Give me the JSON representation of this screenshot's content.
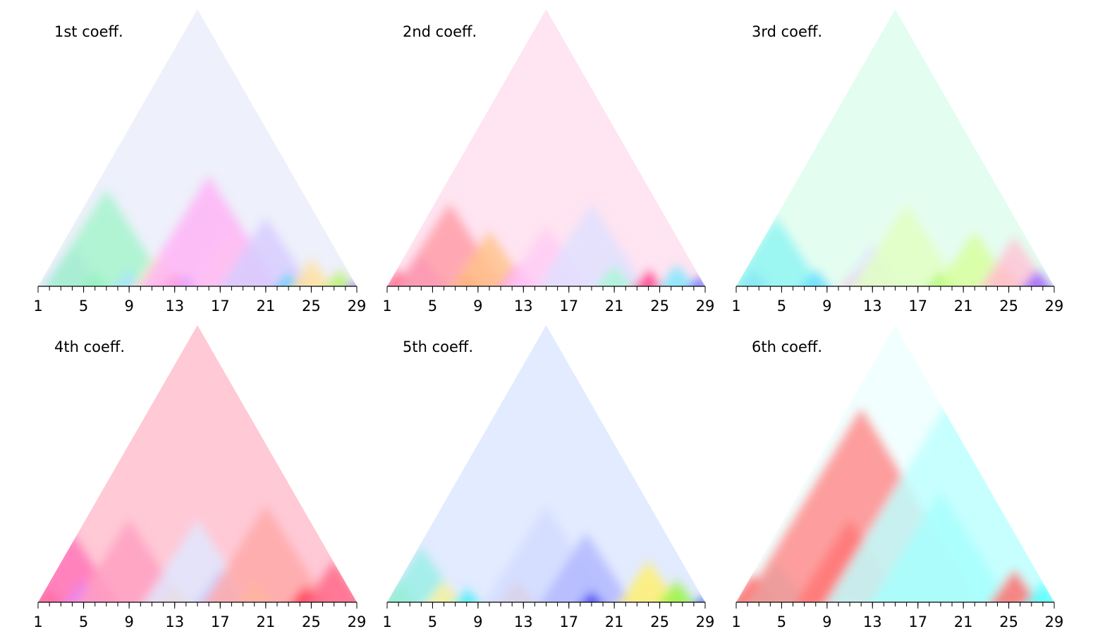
{
  "chart_data": [
    {
      "type": "heatmap",
      "title": "1st coeff.",
      "x_range": [
        1,
        29
      ],
      "minor_ticks": [
        1,
        2,
        3,
        4,
        5,
        6,
        7,
        8,
        9,
        10,
        11,
        12,
        13,
        14,
        15,
        16,
        17,
        18,
        19,
        20,
        21,
        22,
        23,
        24,
        25,
        26,
        27,
        28,
        29
      ],
      "tick_labels": [
        "1",
        "5",
        "9",
        "13",
        "17",
        "21",
        "25",
        "29"
      ],
      "tick_values": [
        1,
        5,
        9,
        13,
        17,
        21,
        25,
        29
      ],
      "colors": {
        "apex": "#eef0fb",
        "blobs": [
          {
            "x": 4,
            "level": 0.15,
            "color": "#b8c8ff"
          },
          {
            "x": 6,
            "level": 0.05,
            "color": "#2ee86a"
          },
          {
            "x": 7,
            "level": 0.35,
            "color": "#a6f5cc"
          },
          {
            "x": 9,
            "level": 0.06,
            "color": "#a6e4ff"
          },
          {
            "x": 11.5,
            "level": 0.12,
            "color": "#fff2b0"
          },
          {
            "x": 13,
            "level": 0.05,
            "color": "#ff2266"
          },
          {
            "x": 14,
            "level": 0.04,
            "color": "#3344ff"
          },
          {
            "x": 16,
            "level": 0.4,
            "color": "#ffb4f7"
          },
          {
            "x": 18,
            "level": 0.2,
            "color": "#ffc2f2"
          },
          {
            "x": 21,
            "level": 0.25,
            "color": "#d7ccff"
          },
          {
            "x": 23,
            "level": 0.05,
            "color": "#3fd0ff"
          },
          {
            "x": 25,
            "level": 0.1,
            "color": "#ffe2a0"
          },
          {
            "x": 27.5,
            "level": 0.06,
            "color": "#b7f26d"
          },
          {
            "x": 28.8,
            "level": 0.02,
            "color": "#aa55ff"
          }
        ]
      }
    },
    {
      "type": "heatmap",
      "title": "2nd coeff.",
      "x_range": [
        1,
        29
      ],
      "minor_ticks": [
        1,
        2,
        3,
        4,
        5,
        6,
        7,
        8,
        9,
        10,
        11,
        12,
        13,
        14,
        15,
        16,
        17,
        18,
        19,
        20,
        21,
        22,
        23,
        24,
        25,
        26,
        27,
        28,
        29
      ],
      "tick_labels": [
        "1",
        "5",
        "9",
        "13",
        "17",
        "21",
        "25",
        "29"
      ],
      "tick_values": [
        1,
        5,
        9,
        13,
        17,
        21,
        25,
        29
      ],
      "colors": {
        "apex": "#ffe4f1",
        "blobs": [
          {
            "x": 2,
            "level": 0.06,
            "color": "#ff4f7a"
          },
          {
            "x": 4,
            "level": 0.12,
            "color": "#ea7dff"
          },
          {
            "x": 6.5,
            "level": 0.3,
            "color": "#ff9ea8"
          },
          {
            "x": 8,
            "level": 0.05,
            "color": "#ff4040"
          },
          {
            "x": 10,
            "level": 0.2,
            "color": "#ffc38c"
          },
          {
            "x": 12.5,
            "level": 0.08,
            "color": "#ff8cf2"
          },
          {
            "x": 15,
            "level": 0.22,
            "color": "#ffcdf5"
          },
          {
            "x": 19,
            "level": 0.3,
            "color": "#e1e0ff"
          },
          {
            "x": 21,
            "level": 0.08,
            "color": "#a8f7d6"
          },
          {
            "x": 24,
            "level": 0.06,
            "color": "#ff3d8d"
          },
          {
            "x": 26.5,
            "level": 0.08,
            "color": "#7fe8ff"
          },
          {
            "x": 28.5,
            "level": 0.04,
            "color": "#7070ff"
          }
        ]
      }
    },
    {
      "type": "heatmap",
      "title": "3rd coeff.",
      "x_range": [
        1,
        29
      ],
      "minor_ticks": [
        1,
        2,
        3,
        4,
        5,
        6,
        7,
        8,
        9,
        10,
        11,
        12,
        13,
        14,
        15,
        16,
        17,
        18,
        19,
        20,
        21,
        22,
        23,
        24,
        25,
        26,
        27,
        28,
        29
      ],
      "tick_labels": [
        "1",
        "5",
        "9",
        "13",
        "17",
        "21",
        "25",
        "29"
      ],
      "tick_values": [
        1,
        5,
        9,
        13,
        17,
        21,
        25,
        29
      ],
      "colors": {
        "apex": "#e4fdf1",
        "blobs": [
          {
            "x": 2.5,
            "level": 0.06,
            "color": "#5599ff"
          },
          {
            "x": 4.5,
            "level": 0.25,
            "color": "#8ff5f2"
          },
          {
            "x": 8,
            "level": 0.06,
            "color": "#66ddff"
          },
          {
            "x": 11.5,
            "level": 0.06,
            "color": "#ffb0b0"
          },
          {
            "x": 13,
            "level": 0.15,
            "color": "#e5e0ff"
          },
          {
            "x": 16,
            "level": 0.3,
            "color": "#e2ffc2"
          },
          {
            "x": 19,
            "level": 0.05,
            "color": "#9df556"
          },
          {
            "x": 22,
            "level": 0.2,
            "color": "#d7ff9d"
          },
          {
            "x": 24.5,
            "level": 0.08,
            "color": "#ffb26b"
          },
          {
            "x": 25.5,
            "level": 0.18,
            "color": "#ffc4d6"
          },
          {
            "x": 27.5,
            "level": 0.06,
            "color": "#9966ff"
          }
        ]
      }
    },
    {
      "type": "heatmap",
      "title": "4th coeff.",
      "x_range": [
        1,
        29
      ],
      "minor_ticks": [
        1,
        2,
        3,
        4,
        5,
        6,
        7,
        8,
        9,
        10,
        11,
        12,
        13,
        14,
        15,
        16,
        17,
        18,
        19,
        20,
        21,
        22,
        23,
        24,
        25,
        26,
        27,
        28,
        29
      ],
      "tick_labels": [
        "1",
        "5",
        "9",
        "13",
        "17",
        "21",
        "25",
        "29"
      ],
      "tick_values": [
        1,
        5,
        9,
        13,
        17,
        21,
        25,
        29
      ],
      "colors": {
        "apex": "#ffc9d6",
        "blobs": [
          {
            "x": 2,
            "level": 0.05,
            "color": "#ff3b1f"
          },
          {
            "x": 4,
            "level": 0.25,
            "color": "#ff75b8"
          },
          {
            "x": 5,
            "level": 0.08,
            "color": "#e080ff"
          },
          {
            "x": 9,
            "level": 0.3,
            "color": "#ffa0c2"
          },
          {
            "x": 13,
            "level": 0.06,
            "color": "#ffb050"
          },
          {
            "x": 15,
            "level": 0.3,
            "color": "#e0e8ff"
          },
          {
            "x": 17,
            "level": 0.12,
            "color": "#c6ccff"
          },
          {
            "x": 20,
            "level": 0.08,
            "color": "#fff060"
          },
          {
            "x": 21,
            "level": 0.35,
            "color": "#ffa9a9"
          },
          {
            "x": 24.5,
            "level": 0.06,
            "color": "#ff3050"
          },
          {
            "x": 27,
            "level": 0.15,
            "color": "#ff6a8a"
          }
        ]
      }
    },
    {
      "type": "heatmap",
      "title": "5th coeff.",
      "x_range": [
        1,
        29
      ],
      "minor_ticks": [
        1,
        2,
        3,
        4,
        5,
        6,
        7,
        8,
        9,
        10,
        11,
        12,
        13,
        14,
        15,
        16,
        17,
        18,
        19,
        20,
        21,
        22,
        23,
        24,
        25,
        26,
        27,
        28,
        29
      ],
      "tick_labels": [
        "1",
        "5",
        "9",
        "13",
        "17",
        "21",
        "25",
        "29"
      ],
      "tick_values": [
        1,
        5,
        9,
        13,
        17,
        21,
        25,
        29
      ],
      "colors": {
        "apex": "#e2ebff",
        "blobs": [
          {
            "x": 2,
            "level": 0.08,
            "color": "#8ce876"
          },
          {
            "x": 4,
            "level": 0.2,
            "color": "#9aeee8"
          },
          {
            "x": 6,
            "level": 0.08,
            "color": "#fff29c"
          },
          {
            "x": 8,
            "level": 0.05,
            "color": "#44eef4"
          },
          {
            "x": 12.5,
            "level": 0.08,
            "color": "#ff9966"
          },
          {
            "x": 15,
            "level": 0.35,
            "color": "#d4dcff"
          },
          {
            "x": 18.5,
            "level": 0.25,
            "color": "#b3b8ff"
          },
          {
            "x": 19,
            "level": 0.04,
            "color": "#3333ee"
          },
          {
            "x": 24,
            "level": 0.15,
            "color": "#fff070"
          },
          {
            "x": 26.5,
            "level": 0.08,
            "color": "#99f545"
          },
          {
            "x": 28.7,
            "level": 0.02,
            "color": "#2244dd"
          }
        ]
      }
    },
    {
      "type": "heatmap",
      "title": "6th coeff.",
      "x_range": [
        1,
        29
      ],
      "minor_ticks": [
        1,
        2,
        3,
        4,
        5,
        6,
        7,
        8,
        9,
        10,
        11,
        12,
        13,
        14,
        15,
        16,
        17,
        18,
        19,
        20,
        21,
        22,
        23,
        24,
        25,
        26,
        27,
        28,
        29
      ],
      "tick_labels": [
        "1",
        "5",
        "9",
        "13",
        "17",
        "21",
        "25",
        "29"
      ],
      "tick_values": [
        1,
        5,
        9,
        13,
        17,
        21,
        25,
        29
      ],
      "colors": {
        "apex": "#f2ffff",
        "blobs": [
          {
            "x": 2.5,
            "level": 0.1,
            "color": "#ff4d4d"
          },
          {
            "x": 4.5,
            "level": 0.15,
            "color": "#70fff8"
          },
          {
            "x": 11,
            "level": 0.3,
            "color": "#ff0000"
          },
          {
            "x": 12,
            "level": 0.7,
            "color": "#ff8c8c"
          },
          {
            "x": 19,
            "level": 0.4,
            "color": "#18fff6"
          },
          {
            "x": 20,
            "level": 0.75,
            "color": "#c0ffff"
          },
          {
            "x": 25.5,
            "level": 0.12,
            "color": "#ff7070"
          },
          {
            "x": 28,
            "level": 0.08,
            "color": "#59ffff"
          }
        ]
      }
    }
  ]
}
